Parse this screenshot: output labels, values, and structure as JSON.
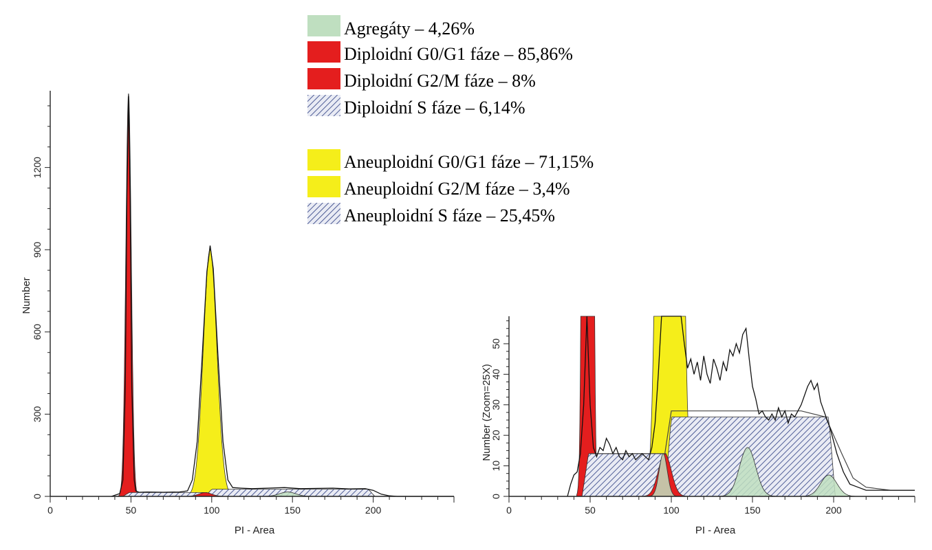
{
  "colors": {
    "aggregates": "#bfdfc0",
    "diploid": "#e41e1e",
    "aneuploid": "#f5ee1a",
    "s_phase_hatch": "#3d4d8c",
    "axis": "#222222"
  },
  "legend": {
    "group1": [
      {
        "label": "Agregáty – 4,26%",
        "swatch": "aggregates"
      },
      {
        "label": "Diploidní G0/G1 fáze – 85,86%",
        "swatch": "diploid"
      },
      {
        "label": "Diploidní G2/M fáze – 8%",
        "swatch": "diploid"
      },
      {
        "label": "Diploidní S fáze – 6,14%",
        "swatch": "hatch"
      }
    ],
    "group2": [
      {
        "label": "Aneuploidní G0/G1 fáze – 71,15%",
        "swatch": "aneuploid"
      },
      {
        "label": "Aneuploidní G2/M fáze – 3,4%",
        "swatch": "aneuploid"
      },
      {
        "label": "Aneuploidní S fáze – 25,45%",
        "swatch": "hatch"
      }
    ]
  },
  "chart_data": [
    {
      "type": "area",
      "xlabel": "PI - Area",
      "ylabel": "Number",
      "xlim": [
        0,
        250
      ],
      "ylim": [
        0,
        1480
      ],
      "xticks": [
        0,
        50,
        100,
        150,
        200
      ],
      "yticks": [
        0,
        300,
        600,
        900,
        1200
      ],
      "ytick_labels": [
        "0",
        "300",
        "600",
        "900",
        "1200"
      ],
      "components": [
        {
          "name": "Diploidní G0/G1",
          "shape": "gaussian",
          "mean": 48.5,
          "sd": 1.7,
          "amp": 1470,
          "color": "diploid"
        },
        {
          "name": "Aneuploidní G0/G1",
          "shape": "gaussian",
          "mean": 99,
          "sd": 4.2,
          "amp": 900,
          "color": "aneuploid"
        },
        {
          "name": "Diploidní S",
          "shape": "trapezoid",
          "from": 49,
          "to": 97,
          "height": 14,
          "color": "hatch"
        },
        {
          "name": "Aneuploidní S",
          "shape": "trapezoid",
          "from": 100,
          "to": 197,
          "height": 26,
          "color": "hatch"
        },
        {
          "name": "Diploidní G2/M",
          "shape": "gaussian",
          "mean": 96,
          "sd": 4,
          "amp": 14,
          "color": "diploid"
        },
        {
          "name": "Agregáty",
          "shape": "gaussian",
          "mean": 147,
          "sd": 5,
          "amp": 16,
          "color": "aggregates"
        }
      ],
      "histogram_points": [
        [
          38,
          0
        ],
        [
          40,
          4
        ],
        [
          43,
          10
        ],
        [
          45,
          60
        ],
        [
          46.5,
          400
        ],
        [
          47.5,
          1100
        ],
        [
          48.5,
          1460
        ],
        [
          49.5,
          1100
        ],
        [
          50.5,
          400
        ],
        [
          52,
          60
        ],
        [
          53,
          20
        ],
        [
          55,
          15
        ],
        [
          60,
          16
        ],
        [
          70,
          15
        ],
        [
          80,
          16
        ],
        [
          85,
          20
        ],
        [
          88,
          60
        ],
        [
          91,
          200
        ],
        [
          94,
          500
        ],
        [
          97,
          820
        ],
        [
          99,
          915
        ],
        [
          101,
          830
        ],
        [
          104,
          500
        ],
        [
          107,
          200
        ],
        [
          110,
          60
        ],
        [
          113,
          32
        ],
        [
          118,
          30
        ],
        [
          125,
          28
        ],
        [
          135,
          30
        ],
        [
          145,
          32
        ],
        [
          155,
          28
        ],
        [
          165,
          29
        ],
        [
          175,
          30
        ],
        [
          185,
          27
        ],
        [
          195,
          28
        ],
        [
          200,
          22
        ],
        [
          205,
          8
        ],
        [
          210,
          2
        ],
        [
          215,
          0
        ],
        [
          240,
          0
        ],
        [
          250,
          0
        ]
      ]
    },
    {
      "type": "area",
      "xlabel": "PI - Area",
      "ylabel": "Number (Zoom=25X)",
      "xlim": [
        0,
        250
      ],
      "ylim": [
        0,
        59
      ],
      "xticks": [
        0,
        50,
        100,
        150,
        200
      ],
      "yticks": [
        0,
        10,
        20,
        30,
        40,
        50
      ],
      "ytick_labels": [
        "0",
        "10",
        "20",
        "30",
        "40",
        "50"
      ],
      "components": [
        {
          "name": "Diploidní G0/G1",
          "shape": "gaussian",
          "mean": 48.5,
          "sd": 1.7,
          "amp": 1470,
          "color": "diploid"
        },
        {
          "name": "Aneuploidní G0/G1",
          "shape": "gaussian",
          "mean": 99,
          "sd": 4.2,
          "amp": 900,
          "color": "aneuploid"
        },
        {
          "name": "Diploidní S",
          "shape": "trapezoid",
          "from": 49,
          "to": 97,
          "height": 14,
          "color": "hatch"
        },
        {
          "name": "Aneuploidní S",
          "shape": "trapezoid",
          "from": 100,
          "to": 197,
          "height": 26,
          "color": "hatch"
        },
        {
          "name": "Diploidní G2/M",
          "shape": "gaussian",
          "mean": 96,
          "sd": 4,
          "amp": 14,
          "color": "diploid"
        },
        {
          "name": "Agregáty",
          "shape": "gaussian",
          "mean": 147,
          "sd": 5,
          "amp": 16,
          "color": "aggregates"
        },
        {
          "name": "Agregáty",
          "shape": "gaussian",
          "mean": 197,
          "sd": 5,
          "amp": 7,
          "color": "aggregates"
        },
        {
          "name": "Agregáty",
          "shape": "gaussian",
          "mean": 95,
          "sd": 2.5,
          "amp": 14,
          "color": "aggregates"
        }
      ],
      "histogram_points": [
        [
          36,
          0
        ],
        [
          38,
          4
        ],
        [
          40,
          7
        ],
        [
          42,
          8
        ],
        [
          44,
          14
        ],
        [
          46,
          30
        ],
        [
          48,
          59
        ],
        [
          50,
          30
        ],
        [
          52,
          16
        ],
        [
          54,
          13
        ],
        [
          56,
          16
        ],
        [
          58,
          15
        ],
        [
          60,
          19
        ],
        [
          62,
          17
        ],
        [
          64,
          14
        ],
        [
          66,
          16
        ],
        [
          68,
          13
        ],
        [
          70,
          12
        ],
        [
          72,
          15
        ],
        [
          74,
          13
        ],
        [
          76,
          14
        ],
        [
          78,
          12
        ],
        [
          80,
          13
        ],
        [
          82,
          14
        ],
        [
          84,
          13
        ],
        [
          86,
          12
        ],
        [
          88,
          16
        ],
        [
          90,
          24
        ],
        [
          92,
          40
        ],
        [
          94,
          59
        ],
        [
          100,
          59
        ],
        [
          106,
          59
        ],
        [
          108,
          50
        ],
        [
          110,
          42
        ],
        [
          112,
          45
        ],
        [
          114,
          40
        ],
        [
          116,
          44
        ],
        [
          118,
          38
        ],
        [
          120,
          46
        ],
        [
          122,
          40
        ],
        [
          124,
          37
        ],
        [
          126,
          45
        ],
        [
          128,
          42
        ],
        [
          130,
          38
        ],
        [
          132,
          44
        ],
        [
          134,
          41
        ],
        [
          136,
          48
        ],
        [
          138,
          46
        ],
        [
          140,
          50
        ],
        [
          142,
          47
        ],
        [
          144,
          53
        ],
        [
          146,
          55
        ],
        [
          148,
          45
        ],
        [
          150,
          36
        ],
        [
          152,
          32
        ],
        [
          154,
          27
        ],
        [
          156,
          28
        ],
        [
          158,
          26
        ],
        [
          160,
          25
        ],
        [
          162,
          27
        ],
        [
          164,
          25
        ],
        [
          166,
          29
        ],
        [
          168,
          26
        ],
        [
          170,
          28
        ],
        [
          172,
          24
        ],
        [
          174,
          27
        ],
        [
          176,
          26
        ],
        [
          178,
          28
        ],
        [
          180,
          30
        ],
        [
          182,
          33
        ],
        [
          184,
          36
        ],
        [
          186,
          38
        ],
        [
          188,
          35
        ],
        [
          190,
          37
        ],
        [
          192,
          31
        ],
        [
          194,
          28
        ],
        [
          196,
          25
        ],
        [
          198,
          22
        ],
        [
          200,
          18
        ],
        [
          202,
          14
        ],
        [
          204,
          11
        ],
        [
          206,
          8
        ],
        [
          208,
          6
        ],
        [
          210,
          4
        ],
        [
          215,
          3
        ],
        [
          220,
          2
        ],
        [
          230,
          2
        ],
        [
          240,
          2
        ],
        [
          250,
          2
        ]
      ],
      "envelope_points": [
        [
          50,
          14
        ],
        [
          96,
          14
        ],
        [
          100,
          28
        ],
        [
          110,
          28
        ],
        [
          125,
          28
        ],
        [
          150,
          28
        ],
        [
          180,
          28
        ],
        [
          195,
          26
        ],
        [
          205,
          14
        ],
        [
          212,
          6
        ],
        [
          220,
          3
        ],
        [
          235,
          2
        ],
        [
          250,
          2
        ]
      ]
    }
  ]
}
